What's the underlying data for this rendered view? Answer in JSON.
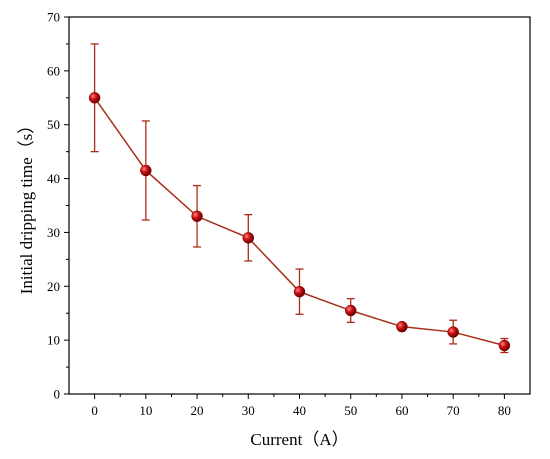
{
  "chart_data": {
    "type": "line",
    "xlabel": "Current（A）",
    "ylabel": "Initial dripping time（s）",
    "xlim": [
      -5,
      85
    ],
    "ylim": [
      0,
      70
    ],
    "xticks": [
      "0",
      "10",
      "20",
      "30",
      "40",
      "50",
      "60",
      "70",
      "80"
    ],
    "yticks": [
      "0",
      "10",
      "20",
      "30",
      "40",
      "50",
      "60",
      "70"
    ],
    "series": [
      {
        "x": [
          0,
          10,
          20,
          30,
          40,
          50,
          60,
          70,
          80
        ],
        "values": [
          55,
          41.5,
          33,
          29,
          19,
          15.5,
          12.5,
          11.5,
          9
        ],
        "error": [
          10,
          9.2,
          5.7,
          4.3,
          4.2,
          2.2,
          0.5,
          2.2,
          1.3
        ]
      }
    ],
    "colors": {
      "line": "#a82e17",
      "marker": "#cc1111",
      "errorbar": "#a82e17"
    }
  }
}
